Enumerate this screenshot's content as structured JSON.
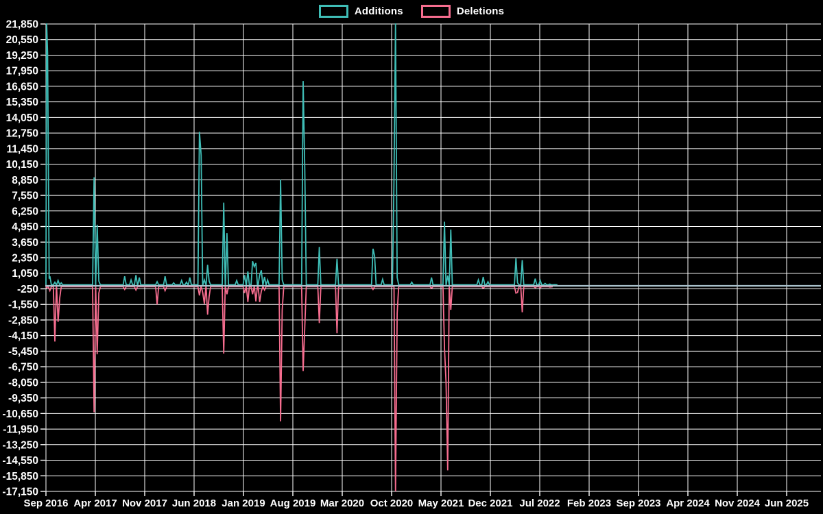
{
  "chart_data": {
    "type": "line",
    "title": "",
    "legend": [
      "Additions",
      "Deletions"
    ],
    "legend_position": "top-center",
    "background_color": "#000000",
    "grid": true,
    "grid_color": "#ffffff",
    "text_color": "#ffffff",
    "zero_line_color": "#a9c0cb",
    "y_axis": {
      "min": -17150,
      "max": 21850,
      "step": 1300
    },
    "y_tick_labels": [
      "21,850",
      "20,550",
      "19,250",
      "17,950",
      "16,650",
      "15,350",
      "14,050",
      "12,750",
      "11,450",
      "10,150",
      "8,850",
      "7,550",
      "6,250",
      "4,950",
      "3,650",
      "2,350",
      "1,050",
      "-250",
      "-1,550",
      "-2,850",
      "-4,150",
      "-5,450",
      "-6,750",
      "-8,050",
      "-9,350",
      "-10,650",
      "-11,950",
      "-13,250",
      "-14,550",
      "-15,850",
      "-17,150"
    ],
    "x_axis": {
      "start": "2016-09-01",
      "end": "2025-06-30",
      "months_per_tick": 7
    },
    "x_tick_labels": [
      "Sep 2016",
      "Apr 2017",
      "Nov 2017",
      "Jun 2018",
      "Jan 2019",
      "Aug 2019",
      "Mar 2020",
      "Oct 2020",
      "May 2021",
      "Dec 2021",
      "Jul 2022",
      "Feb 2023",
      "Sep 2023",
      "Apr 2024",
      "Nov 2024",
      "Jun 2025"
    ],
    "clip_values_to_axis": true,
    "series": [
      {
        "name": "Additions",
        "color": "#3fbdb6",
        "points": [
          [
            "2016-09-04",
            21900
          ],
          [
            "2016-09-08",
            19400
          ],
          [
            "2016-09-15",
            600
          ],
          [
            "2016-09-18",
            800
          ],
          [
            "2016-10-09",
            300
          ],
          [
            "2016-10-23",
            450
          ],
          [
            "2016-11-06",
            250
          ],
          [
            "2017-03-26",
            9050
          ],
          [
            "2017-04-09",
            5100
          ],
          [
            "2017-04-16",
            400
          ],
          [
            "2017-08-06",
            800
          ],
          [
            "2017-09-03",
            500
          ],
          [
            "2017-09-24",
            900
          ],
          [
            "2017-10-08",
            700
          ],
          [
            "2017-12-24",
            350
          ],
          [
            "2018-01-28",
            800
          ],
          [
            "2018-03-04",
            250
          ],
          [
            "2018-04-08",
            450
          ],
          [
            "2018-04-29",
            300
          ],
          [
            "2018-05-13",
            700
          ],
          [
            "2018-06-24",
            12850
          ],
          [
            "2018-07-01",
            10900
          ],
          [
            "2018-07-15",
            500
          ],
          [
            "2018-07-29",
            1750
          ],
          [
            "2018-08-05",
            400
          ],
          [
            "2018-10-07",
            6950
          ],
          [
            "2018-10-21",
            4400
          ],
          [
            "2018-12-02",
            450
          ],
          [
            "2019-01-06",
            900
          ],
          [
            "2019-01-20",
            1200
          ],
          [
            "2019-02-10",
            2050
          ],
          [
            "2019-02-17",
            1600
          ],
          [
            "2019-02-24",
            1900
          ],
          [
            "2019-03-10",
            900
          ],
          [
            "2019-03-17",
            1300
          ],
          [
            "2019-03-31",
            750
          ],
          [
            "2019-04-14",
            500
          ],
          [
            "2019-06-09",
            8850
          ],
          [
            "2019-06-16",
            500
          ],
          [
            "2019-09-15",
            17100
          ],
          [
            "2019-09-22",
            9700
          ],
          [
            "2019-11-24",
            3250
          ],
          [
            "2020-02-09",
            2250
          ],
          [
            "2020-07-12",
            3100
          ],
          [
            "2020-07-19",
            2500
          ],
          [
            "2020-08-23",
            550
          ],
          [
            "2020-10-11",
            8450
          ],
          [
            "2020-10-18",
            21900
          ],
          [
            "2020-10-25",
            700
          ],
          [
            "2020-12-27",
            300
          ],
          [
            "2021-03-21",
            700
          ],
          [
            "2021-05-16",
            5350
          ],
          [
            "2021-05-30",
            850
          ],
          [
            "2021-06-13",
            4700
          ],
          [
            "2021-10-10",
            500
          ],
          [
            "2021-10-31",
            750
          ],
          [
            "2021-11-21",
            350
          ],
          [
            "2022-03-20",
            2300
          ],
          [
            "2022-03-27",
            250
          ],
          [
            "2022-04-17",
            2150
          ],
          [
            "2022-06-12",
            600
          ],
          [
            "2022-07-03",
            450
          ],
          [
            "2022-07-24",
            200
          ],
          [
            "2022-08-14",
            150
          ],
          [
            "2022-09-04",
            100
          ]
        ]
      },
      {
        "name": "Deletions",
        "color": "#f66d8f",
        "points": [
          [
            "2016-09-04",
            -150
          ],
          [
            "2016-09-18",
            -400
          ],
          [
            "2016-10-09",
            -4650
          ],
          [
            "2016-10-23",
            -3000
          ],
          [
            "2016-10-30",
            -1000
          ],
          [
            "2017-03-26",
            -10550
          ],
          [
            "2017-04-09",
            -5700
          ],
          [
            "2017-04-16",
            -600
          ],
          [
            "2017-08-06",
            -300
          ],
          [
            "2017-09-24",
            -350
          ],
          [
            "2017-12-24",
            -1550
          ],
          [
            "2018-01-28",
            -400
          ],
          [
            "2018-06-24",
            -800
          ],
          [
            "2018-07-08",
            -600
          ],
          [
            "2018-07-15",
            -1500
          ],
          [
            "2018-07-29",
            -2400
          ],
          [
            "2018-08-05",
            -900
          ],
          [
            "2018-10-07",
            -5650
          ],
          [
            "2018-10-21",
            -700
          ],
          [
            "2019-01-06",
            -600
          ],
          [
            "2019-01-20",
            -1350
          ],
          [
            "2019-02-10",
            -700
          ],
          [
            "2019-02-24",
            -1300
          ],
          [
            "2019-03-10",
            -1350
          ],
          [
            "2019-03-17",
            -450
          ],
          [
            "2019-03-31",
            -350
          ],
          [
            "2019-06-09",
            -11300
          ],
          [
            "2019-06-16",
            -2000
          ],
          [
            "2019-09-15",
            -7100
          ],
          [
            "2019-09-22",
            -3400
          ],
          [
            "2019-11-24",
            -3100
          ],
          [
            "2020-02-09",
            -3950
          ],
          [
            "2020-07-12",
            -300
          ],
          [
            "2020-10-18",
            -17150
          ],
          [
            "2020-10-25",
            -2300
          ],
          [
            "2021-03-21",
            -200
          ],
          [
            "2021-05-16",
            -5200
          ],
          [
            "2021-05-23",
            -8100
          ],
          [
            "2021-05-30",
            -15400
          ],
          [
            "2021-06-13",
            -2000
          ],
          [
            "2021-10-31",
            -200
          ],
          [
            "2022-03-20",
            -600
          ],
          [
            "2022-03-27",
            -550
          ],
          [
            "2022-04-17",
            -2200
          ],
          [
            "2022-06-12",
            -150
          ],
          [
            "2022-07-03",
            -150
          ],
          [
            "2022-08-14",
            -100
          ]
        ]
      }
    ]
  }
}
